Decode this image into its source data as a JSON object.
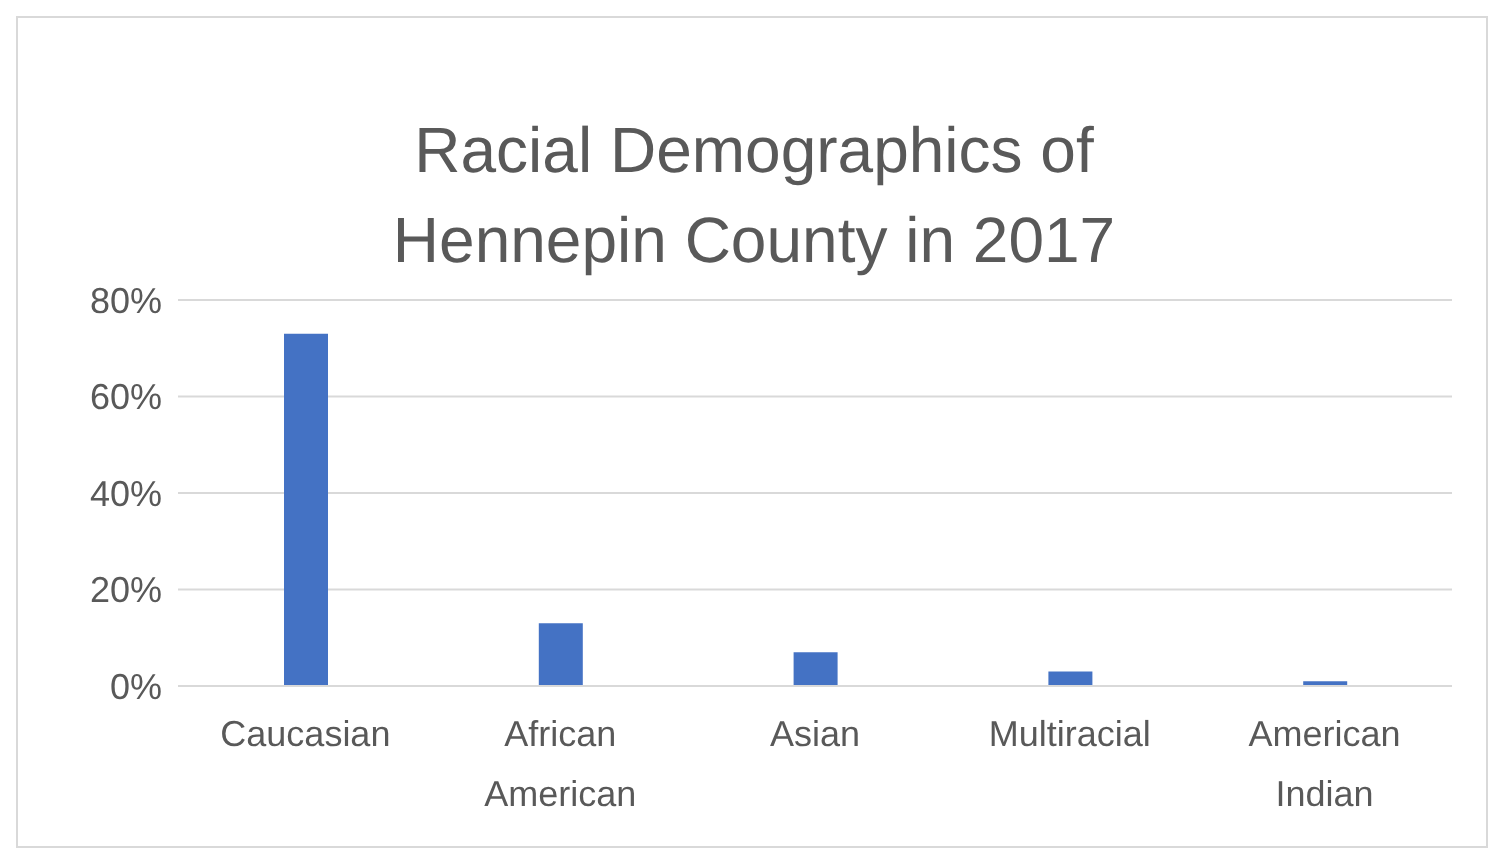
{
  "chart_data": {
    "type": "bar",
    "title": "Racial Demographics of Hennepin County in 2017",
    "categories": [
      "Caucasian",
      "African American",
      "Asian",
      "Multiracial",
      "American Indian"
    ],
    "values": [
      73,
      13,
      7,
      3,
      1
    ],
    "color": "#4472c4",
    "ylim": [
      0,
      80
    ],
    "yticks": [
      {
        "value": 0,
        "label": "0%"
      },
      {
        "value": 20,
        "label": "20%"
      },
      {
        "value": 40,
        "label": "40%"
      },
      {
        "value": 60,
        "label": "60%"
      },
      {
        "value": 80,
        "label": "80%"
      }
    ],
    "grid": "y"
  }
}
